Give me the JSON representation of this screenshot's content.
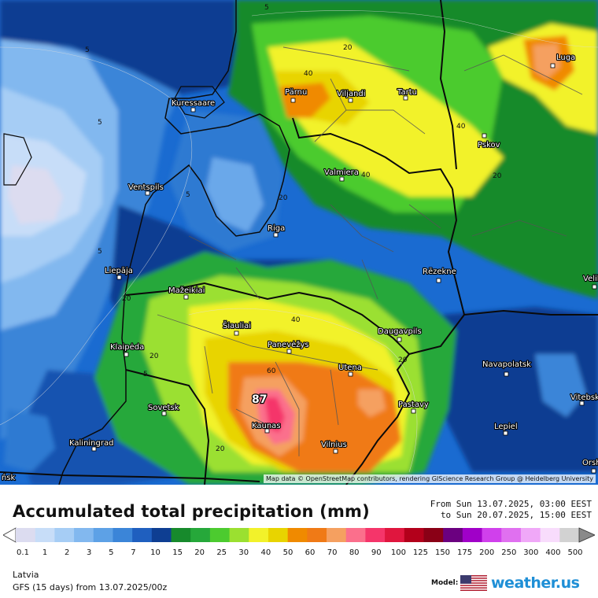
{
  "map": {
    "title": "Accumulated total precipitation (mm)",
    "period": {
      "from": "From Sun 13.07.2025, 03:00 EEST",
      "to": "to Sun 20.07.2025, 15:00 EEST"
    },
    "attribution": "Map data © OpenStreetMap contributors, rendering GIScience Research Group @ Heidelberg University",
    "region": "Latvia",
    "model_run": "GFS (15 days) from  13.07.2025/00z",
    "model_label": "Model:",
    "brand": "weather.us",
    "peak_value": "87",
    "cities": [
      {
        "name": "Kuressaare"
      },
      {
        "name": "Pärnu"
      },
      {
        "name": "Viljandi"
      },
      {
        "name": "Tartu"
      },
      {
        "name": "Luga"
      },
      {
        "name": "Pskov"
      },
      {
        "name": "Valmiera"
      },
      {
        "name": "Ventspils"
      },
      {
        "name": "Riga"
      },
      {
        "name": "Liepāja"
      },
      {
        "name": "Rēzekne"
      },
      {
        "name": "Mažeikiai"
      },
      {
        "name": "Šiauliai"
      },
      {
        "name": "Panevėžys"
      },
      {
        "name": "Daugavpils"
      },
      {
        "name": "Klaipėda"
      },
      {
        "name": "Utena"
      },
      {
        "name": "Navapolatsk"
      },
      {
        "name": "Sovetsk"
      },
      {
        "name": "Pastavy"
      },
      {
        "name": "Kaunas"
      },
      {
        "name": "Kaliningrad"
      },
      {
        "name": "Vilnius"
      },
      {
        "name": "Lepiel"
      },
      {
        "name": "Vitebsk"
      },
      {
        "name": "Orsha"
      },
      {
        "name": "Velikie"
      }
    ],
    "contour_labels": [
      "5",
      "5",
      "5",
      "5",
      "5",
      "5",
      "20",
      "20",
      "20",
      "20",
      "20",
      "20",
      "20",
      "40",
      "40",
      "40",
      "40",
      "60"
    ],
    "edge_label": "ńsk",
    "scale_colors": [
      "#dcdcf0",
      "#c7ddf8",
      "#a6cdf5",
      "#82b8ef",
      "#5da1e6",
      "#3b85d8",
      "#1f5fbf",
      "#0e3e92",
      "#178a2c",
      "#26a83a",
      "#4ccb2f",
      "#9be030",
      "#f2f22a",
      "#e8d400",
      "#f08a00",
      "#f07a16",
      "#f5a060",
      "#fb6f8c",
      "#f5356a",
      "#e0163e",
      "#b3001b",
      "#8a0016",
      "#6b0080",
      "#a000c8",
      "#d040ec",
      "#e070f0",
      "#f0a8f8",
      "#f8dcfc",
      "#d2d2d2"
    ],
    "scale_ticks": [
      "0.1",
      "1",
      "2",
      "3",
      "5",
      "7",
      "10",
      "15",
      "20",
      "25",
      "30",
      "40",
      "50",
      "60",
      "70",
      "80",
      "90",
      "100",
      "125",
      "150",
      "175",
      "200",
      "250",
      "300",
      "400",
      "500"
    ]
  }
}
